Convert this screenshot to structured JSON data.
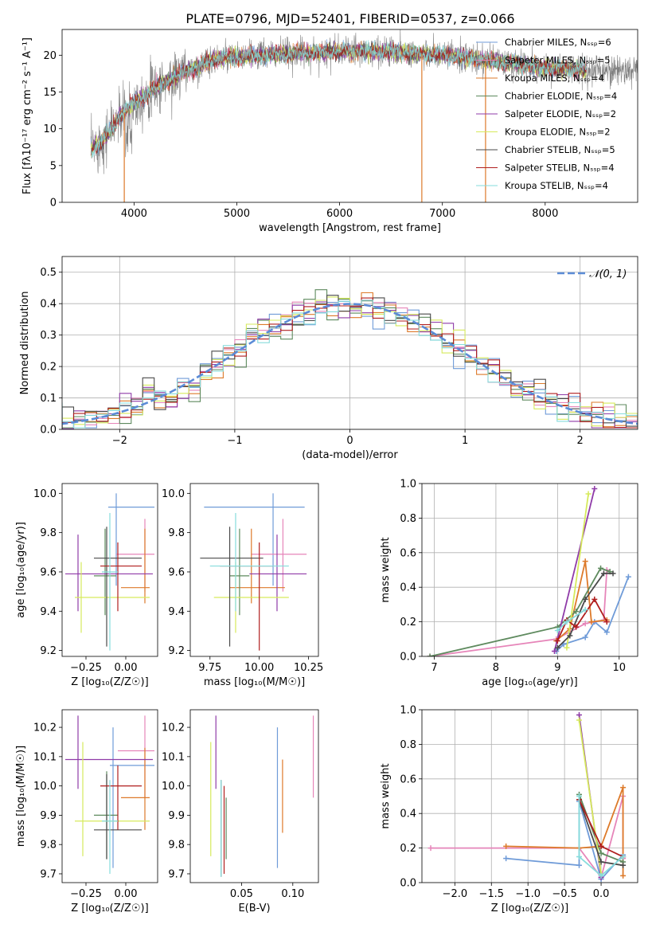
{
  "title": "PLATE=0796, MJD=52401, FIBERID=0537, z=0.066",
  "colors": {
    "Chabrier MILES": "#6f9bd8",
    "Salpeter MILES": "#e685b9",
    "Kroupa MILES": "#dd7a2a",
    "Chabrier ELODIE": "#5e8a5e",
    "Salpeter ELODIE": "#8f3ba8",
    "Kroupa ELODIE": "#d6ea5c",
    "Chabrier STELIB": "#4a4a4a",
    "Salpeter STELIB": "#b01e1e",
    "Kroupa STELIB": "#86dcdc",
    "spectrum": "#808080"
  },
  "chart_data": [
    {
      "type": "line",
      "xlabel": "wavelength [Angstrom, rest frame]",
      "ylabel": "Flux [fλ10⁻¹⁷ erg cm⁻² s⁻¹ A⁻¹]",
      "xlim": [
        3300,
        8900
      ],
      "ylim": [
        0,
        23.5
      ],
      "xticks": [
        4000,
        5000,
        6000,
        7000,
        8000
      ],
      "yticks": [
        0,
        5,
        10,
        15,
        20
      ],
      "legend_position": "right",
      "series": [
        {
          "name": "Chabrier MILES, Nₛₛₚ=6",
          "model": "Chabrier MILES"
        },
        {
          "name": "Salpeter MILES, Nₛₛₚ=5",
          "model": "Salpeter MILES"
        },
        {
          "name": "Kroupa MILES, Nₛₛₚ=4",
          "model": "Kroupa MILES"
        },
        {
          "name": "Chabrier ELODIE, Nₛₛₚ=4",
          "model": "Chabrier ELODIE"
        },
        {
          "name": "Salpeter ELODIE, Nₛₛₚ=2",
          "model": "Salpeter ELODIE"
        },
        {
          "name": "Kroupa ELODIE, Nₛₛₚ=2",
          "model": "Kroupa ELODIE"
        },
        {
          "name": "Chabrier STELIB, Nₛₛₚ=5",
          "model": "Chabrier STELIB"
        },
        {
          "name": "Salpeter STELIB, Nₛₛₚ=4",
          "model": "Salpeter STELIB"
        },
        {
          "name": "Kroupa STELIB, Nₛₛₚ=4",
          "model": "Kroupa STELIB"
        }
      ],
      "continuum": {
        "x": [
          3580,
          3700,
          3850,
          4000,
          4200,
          4500,
          4800,
          5200,
          5600,
          6000,
          6500,
          7000,
          7500,
          8000,
          8400
        ],
        "y": [
          7.0,
          8.5,
          11.5,
          13.5,
          15.5,
          17.8,
          19.5,
          20.0,
          20.3,
          20.5,
          20.5,
          20.0,
          19.2,
          18.3,
          18.0
        ]
      },
      "model_range": [
        3580,
        8400
      ],
      "spectrum_range": [
        3580,
        8900
      ],
      "drops": [
        {
          "x": 3905,
          "model": "Kroupa MILES"
        },
        {
          "x": 6800,
          "model": "Kroupa MILES"
        },
        {
          "x": 7420,
          "model": "Kroupa MILES"
        }
      ]
    },
    {
      "type": "histogram",
      "xlabel": "(data-model)/error",
      "ylabel": "Normed distribution",
      "xlim": [
        -2.5,
        2.5
      ],
      "ylim": [
        0,
        0.55
      ],
      "xticks": [
        -2,
        -1,
        0,
        1,
        2
      ],
      "yticks": [
        0.0,
        0.1,
        0.2,
        0.3,
        0.4,
        0.5
      ],
      "grid": true,
      "legend": [
        {
          "label": "𝒩(0, 1)",
          "style": "dashed",
          "color": "#5b8bd6"
        }
      ],
      "bin_width": 0.1,
      "gaussian": {
        "mean": 0,
        "sigma": 1
      }
    },
    {
      "type": "scatter",
      "name": "age-vs-Z",
      "xlabel": "Z [log₁₀(Z/Z☉)]",
      "ylabel": "age [log₁₀(age/yr)]",
      "xlim": [
        -0.4,
        0.2
      ],
      "ylim": [
        9.17,
        10.05
      ],
      "xticks": [
        -0.25,
        0.0
      ],
      "yticks": [
        9.2,
        9.4,
        9.6,
        9.8,
        10.0
      ],
      "points": [
        {
          "model": "Chabrier MILES",
          "x": -0.06,
          "xlo": -0.11,
          "xhi": 0.18,
          "y": 9.93,
          "ylo": 9.53,
          "yhi": 10.0
        },
        {
          "model": "Salpeter MILES",
          "x": 0.12,
          "xlo": -0.06,
          "xhi": 0.18,
          "y": 9.69,
          "ylo": 9.5,
          "yhi": 9.87
        },
        {
          "model": "Kroupa MILES",
          "x": 0.12,
          "xlo": -0.03,
          "xhi": 0.15,
          "y": 9.52,
          "ylo": 9.44,
          "yhi": 9.82
        },
        {
          "model": "Chabrier ELODIE",
          "x": -0.13,
          "xlo": -0.2,
          "xhi": -0.06,
          "y": 9.58,
          "ylo": 9.38,
          "yhi": 9.82
        },
        {
          "model": "Salpeter ELODIE",
          "x": -0.3,
          "xlo": -0.38,
          "xhi": 0.17,
          "y": 9.59,
          "ylo": 9.4,
          "yhi": 9.79
        },
        {
          "model": "Kroupa ELODIE",
          "x": -0.28,
          "xlo": -0.32,
          "xhi": 0.15,
          "y": 9.47,
          "ylo": 9.29,
          "yhi": 9.65
        },
        {
          "model": "Chabrier STELIB",
          "x": -0.12,
          "xlo": -0.2,
          "xhi": 0.1,
          "y": 9.67,
          "ylo": 9.22,
          "yhi": 9.83
        },
        {
          "model": "Salpeter STELIB",
          "x": -0.05,
          "xlo": -0.16,
          "xhi": 0.1,
          "y": 9.63,
          "ylo": 9.4,
          "yhi": 9.75
        },
        {
          "model": "Kroupa STELIB",
          "x": -0.1,
          "xlo": -0.15,
          "xhi": -0.05,
          "y": 9.6,
          "ylo": 9.2,
          "yhi": 9.9
        }
      ]
    },
    {
      "type": "scatter",
      "name": "age-vs-mass",
      "xlabel": "mass [log₁₀(M/M☉)]",
      "ylabel": "",
      "xlim": [
        9.65,
        10.3
      ],
      "ylim": [
        9.17,
        10.05
      ],
      "xticks": [
        9.75,
        10.0,
        10.25
      ],
      "yticks": [
        9.2,
        9.4,
        9.6,
        9.8,
        10.0
      ],
      "points": [
        {
          "model": "Chabrier MILES",
          "x": 10.07,
          "xlo": 9.72,
          "xhi": 10.23,
          "y": 9.93,
          "ylo": 9.53,
          "yhi": 10.0
        },
        {
          "model": "Salpeter MILES",
          "x": 10.12,
          "xlo": 9.96,
          "xhi": 10.24,
          "y": 9.69,
          "ylo": 9.5,
          "yhi": 9.87
        },
        {
          "model": "Kroupa MILES",
          "x": 9.96,
          "xlo": 9.85,
          "xhi": 10.13,
          "y": 9.52,
          "ylo": 9.44,
          "yhi": 9.82
        },
        {
          "model": "Chabrier ELODIE",
          "x": 9.9,
          "xlo": 9.85,
          "xhi": 9.95,
          "y": 9.58,
          "ylo": 9.38,
          "yhi": 9.82
        },
        {
          "model": "Salpeter ELODIE",
          "x": 10.09,
          "xlo": 9.95,
          "xhi": 10.24,
          "y": 9.59,
          "ylo": 9.4,
          "yhi": 9.79
        },
        {
          "model": "Kroupa ELODIE",
          "x": 9.88,
          "xlo": 9.77,
          "xhi": 10.15,
          "y": 9.47,
          "ylo": 9.29,
          "yhi": 9.65
        },
        {
          "model": "Chabrier STELIB",
          "x": 9.85,
          "xlo": 9.7,
          "xhi": 10.02,
          "y": 9.67,
          "ylo": 9.22,
          "yhi": 9.83
        },
        {
          "model": "Salpeter STELIB",
          "x": 10.0,
          "xlo": 9.8,
          "xhi": 10.07,
          "y": 9.63,
          "ylo": 9.2,
          "yhi": 9.75
        },
        {
          "model": "Kroupa STELIB",
          "x": 9.88,
          "xlo": 9.75,
          "xhi": 10.15,
          "y": 9.63,
          "ylo": 9.4,
          "yhi": 9.9
        }
      ]
    },
    {
      "type": "line",
      "name": "mass-weight-vs-age",
      "xlabel": "age [log₁₀(age/yr)]",
      "ylabel": "mass weight",
      "xlim": [
        6.8,
        10.3
      ],
      "ylim": [
        0,
        1.0
      ],
      "xticks": [
        7,
        8,
        9,
        10
      ],
      "yticks": [
        0.0,
        0.2,
        0.4,
        0.6,
        0.8,
        1.0
      ],
      "grid": true,
      "series": [
        {
          "model": "Chabrier MILES",
          "x": [
            8.98,
            9.1,
            9.45,
            9.6,
            9.8,
            10.15
          ],
          "y": [
            0.03,
            0.07,
            0.11,
            0.2,
            0.14,
            0.46
          ]
        },
        {
          "model": "Salpeter MILES",
          "x": [
            6.93,
            8.98,
            9.45,
            9.75,
            9.8
          ],
          "y": [
            0.0,
            0.1,
            0.19,
            0.21,
            0.5
          ]
        },
        {
          "model": "Kroupa MILES",
          "x": [
            8.98,
            9.2,
            9.45,
            9.55,
            9.8
          ],
          "y": [
            0.09,
            0.16,
            0.55,
            0.2,
            0.21
          ]
        },
        {
          "model": "Chabrier ELODIE",
          "x": [
            6.93,
            9.0,
            9.3,
            9.7,
            9.85
          ],
          "y": [
            0.0,
            0.17,
            0.26,
            0.51,
            0.49
          ]
        },
        {
          "model": "Salpeter ELODIE",
          "x": [
            8.95,
            9.6
          ],
          "y": [
            0.03,
            0.97
          ]
        },
        {
          "model": "Kroupa ELODIE",
          "x": [
            9.15,
            9.5
          ],
          "y": [
            0.05,
            0.94
          ]
        },
        {
          "model": "Chabrier STELIB",
          "x": [
            9.0,
            9.2,
            9.45,
            9.75,
            9.9
          ],
          "y": [
            0.05,
            0.12,
            0.33,
            0.48,
            0.48
          ]
        },
        {
          "model": "Salpeter STELIB",
          "x": [
            9.0,
            9.15,
            9.3,
            9.6,
            9.8
          ],
          "y": [
            0.09,
            0.21,
            0.17,
            0.33,
            0.2
          ]
        },
        {
          "model": "Kroupa STELIB",
          "x": [
            9.0,
            9.15,
            9.45
          ],
          "y": [
            0.15,
            0.2,
            0.27
          ]
        }
      ]
    },
    {
      "type": "scatter",
      "name": "mass-vs-Z",
      "xlabel": "Z [log₁₀(Z/Z☉)]",
      "ylabel": "mass [log₁₀(M/M☉)]",
      "xlim": [
        -0.4,
        0.2
      ],
      "ylim": [
        9.67,
        10.26
      ],
      "xticks": [
        -0.25,
        0.0
      ],
      "yticks": [
        9.7,
        9.8,
        9.9,
        10.0,
        10.1,
        10.2
      ],
      "points": [
        {
          "model": "Chabrier MILES",
          "x": -0.08,
          "xlo": -0.1,
          "xhi": 0.18,
          "y": 10.07,
          "ylo": 9.72,
          "yhi": 10.2
        },
        {
          "model": "Salpeter MILES",
          "x": 0.12,
          "xlo": -0.05,
          "xhi": 0.18,
          "y": 10.12,
          "ylo": 9.96,
          "yhi": 10.24
        },
        {
          "model": "Kroupa MILES",
          "x": 0.12,
          "xlo": -0.03,
          "xhi": 0.15,
          "y": 9.96,
          "ylo": 9.85,
          "yhi": 10.13
        },
        {
          "model": "Chabrier ELODIE",
          "x": -0.12,
          "xlo": -0.2,
          "xhi": -0.05,
          "y": 9.9,
          "ylo": 9.75,
          "yhi": 10.05
        },
        {
          "model": "Salpeter ELODIE",
          "x": -0.3,
          "xlo": -0.38,
          "xhi": 0.17,
          "y": 10.09,
          "ylo": 9.99,
          "yhi": 10.24
        },
        {
          "model": "Kroupa ELODIE",
          "x": -0.27,
          "xlo": -0.32,
          "xhi": 0.15,
          "y": 9.88,
          "ylo": 9.76,
          "yhi": 10.15
        },
        {
          "model": "Chabrier STELIB",
          "x": -0.12,
          "xlo": -0.2,
          "xhi": 0.1,
          "y": 9.85,
          "ylo": 9.75,
          "yhi": 10.04
        },
        {
          "model": "Salpeter STELIB",
          "x": -0.05,
          "xlo": -0.16,
          "xhi": 0.1,
          "y": 10.0,
          "ylo": 9.85,
          "yhi": 10.07
        },
        {
          "model": "Kroupa STELIB",
          "x": -0.1,
          "xlo": -0.15,
          "xhi": -0.05,
          "y": 9.88,
          "ylo": 9.7,
          "yhi": 10.02
        }
      ]
    },
    {
      "type": "scatter",
      "name": "mass-vs-EBV",
      "xlabel": "E(B-V)",
      "ylabel": "",
      "xlim": [
        0.0,
        0.125
      ],
      "ylim": [
        9.67,
        10.26
      ],
      "xticks": [
        0.05,
        0.1
      ],
      "yticks": [
        9.7,
        9.8,
        9.9,
        10.0,
        10.1,
        10.2
      ],
      "points": [
        {
          "model": "Chabrier MILES",
          "x": 0.085,
          "y": 9.95,
          "ylo": 9.72,
          "yhi": 10.2
        },
        {
          "model": "Salpeter MILES",
          "x": 0.12,
          "y": 10.1,
          "ylo": 9.96,
          "yhi": 10.24
        },
        {
          "model": "Kroupa MILES",
          "x": 0.09,
          "y": 9.98,
          "ylo": 9.84,
          "yhi": 10.09
        },
        {
          "model": "Chabrier ELODIE",
          "x": 0.035,
          "y": 9.85,
          "ylo": 9.75,
          "yhi": 9.96
        },
        {
          "model": "Salpeter ELODIE",
          "x": 0.025,
          "y": 10.1,
          "ylo": 9.99,
          "yhi": 10.24
        },
        {
          "model": "Kroupa ELODIE",
          "x": 0.02,
          "y": 9.95,
          "ylo": 9.76,
          "yhi": 10.15
        },
        {
          "model": "Chabrier STELIB",
          "x": 0.03,
          "y": 9.9,
          "ylo": 9.69,
          "yhi": 10.02
        },
        {
          "model": "Salpeter STELIB",
          "x": 0.033,
          "y": 9.88,
          "ylo": 9.7,
          "yhi": 10.0
        },
        {
          "model": "Kroupa STELIB",
          "x": 0.03,
          "y": 9.86,
          "ylo": 9.69,
          "yhi": 10.02
        }
      ]
    },
    {
      "type": "line",
      "name": "mass-weight-vs-Z",
      "xlabel": "Z [log₁₀(Z/Z☉)]",
      "ylabel": "mass weight",
      "xlim": [
        -2.45,
        0.5
      ],
      "ylim": [
        0,
        1.0
      ],
      "xticks": [
        -2.0,
        -1.5,
        -1.0,
        -0.5,
        0.0
      ],
      "yticks": [
        0.0,
        0.2,
        0.4,
        0.6,
        0.8,
        1.0
      ],
      "grid": true,
      "series": [
        {
          "model": "Chabrier MILES",
          "x": [
            -1.3,
            -0.3,
            -0.3,
            0.0,
            0.3
          ],
          "y": [
            0.14,
            0.1,
            0.47,
            0.02,
            0.16
          ]
        },
        {
          "model": "Salpeter MILES",
          "x": [
            -2.33,
            -0.3,
            0.0,
            0.3,
            0.3
          ],
          "y": [
            0.2,
            0.2,
            0.03,
            0.5,
            0.14
          ]
        },
        {
          "model": "Kroupa MILES",
          "x": [
            -1.3,
            -0.3,
            0.0,
            0.3,
            0.3
          ],
          "y": [
            0.21,
            0.2,
            0.21,
            0.55,
            0.04
          ]
        },
        {
          "model": "Chabrier ELODIE",
          "x": [
            -0.3,
            0.0,
            0.3
          ],
          "y": [
            0.51,
            0.17,
            0.12
          ]
        },
        {
          "model": "Salpeter ELODIE",
          "x": [
            -0.3,
            0.0
          ],
          "y": [
            0.97,
            0.03
          ]
        },
        {
          "model": "Kroupa ELODIE",
          "x": [
            -0.3,
            0.0
          ],
          "y": [
            0.94,
            0.05
          ]
        },
        {
          "model": "Chabrier STELIB",
          "x": [
            -0.3,
            0.0,
            0.3
          ],
          "y": [
            0.48,
            0.12,
            0.1
          ]
        },
        {
          "model": "Salpeter STELIB",
          "x": [
            -0.3,
            0.0,
            0.3
          ],
          "y": [
            0.48,
            0.21,
            0.15
          ]
        },
        {
          "model": "Kroupa STELIB",
          "x": [
            -0.3,
            -0.3,
            0.0,
            0.3
          ],
          "y": [
            0.5,
            0.15,
            0.04,
            0.15
          ]
        }
      ]
    }
  ]
}
